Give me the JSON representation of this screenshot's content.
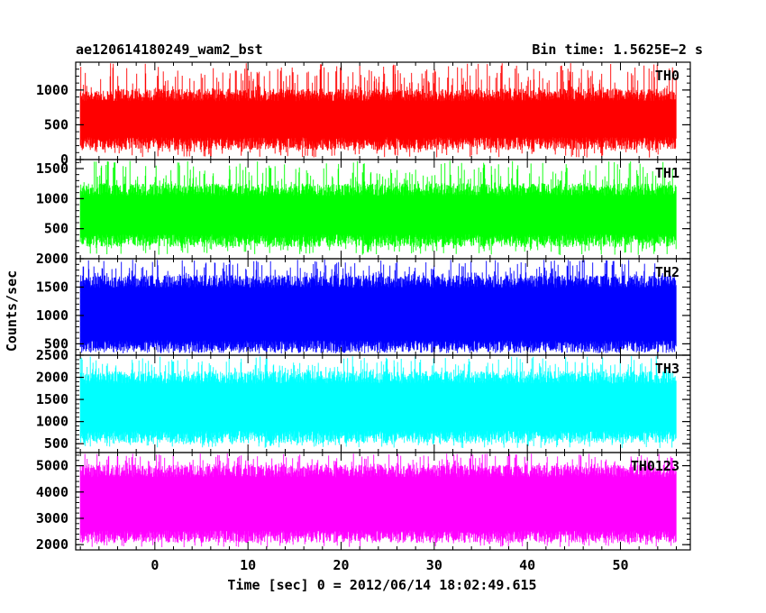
{
  "title_left": "ae120614180249_wam2_bst",
  "title_right": "Bin time: 1.5625E−2 s",
  "ylabel": "Counts/sec",
  "xlabel": "Time [sec] 0 = 2012/06/14 18:02:49.615",
  "chart_data": {
    "type": "line",
    "title": "ae120614180249_wam2_bst",
    "subtitle": "Bin time: 1.5625E−2 s",
    "xlabel": "Time [sec] 0 = 2012/06/14 18:02:49.615",
    "ylabel": "Counts/sec",
    "xlim": [
      -8.5,
      57.5
    ],
    "x_data_range": [
      -8,
      56
    ],
    "xticks": [
      0,
      10,
      20,
      30,
      40,
      50
    ],
    "xtick_labels": [
      "0",
      "10",
      "20",
      "30",
      "40",
      "50"
    ],
    "bin_time_s": 0.015625,
    "panels": [
      {
        "name": "TH0",
        "color": "#ff0000",
        "ylim": [
          0,
          1400
        ],
        "yticks": [
          0,
          500,
          1000
        ],
        "ytick_labels": [
          "0",
          "500",
          "1000"
        ],
        "minor_step": 100,
        "typical_range": [
          230,
          930
        ],
        "full_range": [
          30,
          1400
        ]
      },
      {
        "name": "TH1",
        "color": "#00ff00",
        "ylim": [
          0,
          1650
        ],
        "yticks": [
          500,
          1000,
          1500
        ],
        "ytick_labels": [
          "500",
          "1000",
          "1500"
        ],
        "minor_step": 100,
        "typical_range": [
          300,
          1150
        ],
        "full_range": [
          60,
          1650
        ]
      },
      {
        "name": "TH2",
        "color": "#0000ff",
        "ylim": [
          300,
          2000
        ],
        "yticks": [
          500,
          1000,
          1500,
          2000
        ],
        "ytick_labels": [
          "500",
          "1000",
          "1500",
          "2000"
        ],
        "minor_step": 100,
        "typical_range": [
          450,
          1600
        ],
        "full_range": [
          330,
          2000
        ]
      },
      {
        "name": "TH3",
        "color": "#00ffff",
        "ylim": [
          300,
          2500
        ],
        "yticks": [
          500,
          1000,
          1500,
          2000,
          2500
        ],
        "ytick_labels": [
          "500",
          "1000",
          "1500",
          "2000",
          "2500"
        ],
        "minor_step": 100,
        "typical_range": [
          650,
          2000
        ],
        "full_range": [
          400,
          2500
        ]
      },
      {
        "name": "TH0123",
        "color": "#ff00ff",
        "ylim": [
          1800,
          5500
        ],
        "yticks": [
          2000,
          3000,
          4000,
          5000
        ],
        "ytick_labels": [
          "2000",
          "3000",
          "4000",
          "5000"
        ],
        "minor_step": 200,
        "typical_range": [
          2300,
          4800
        ],
        "full_range": [
          1900,
          5500
        ]
      }
    ]
  }
}
